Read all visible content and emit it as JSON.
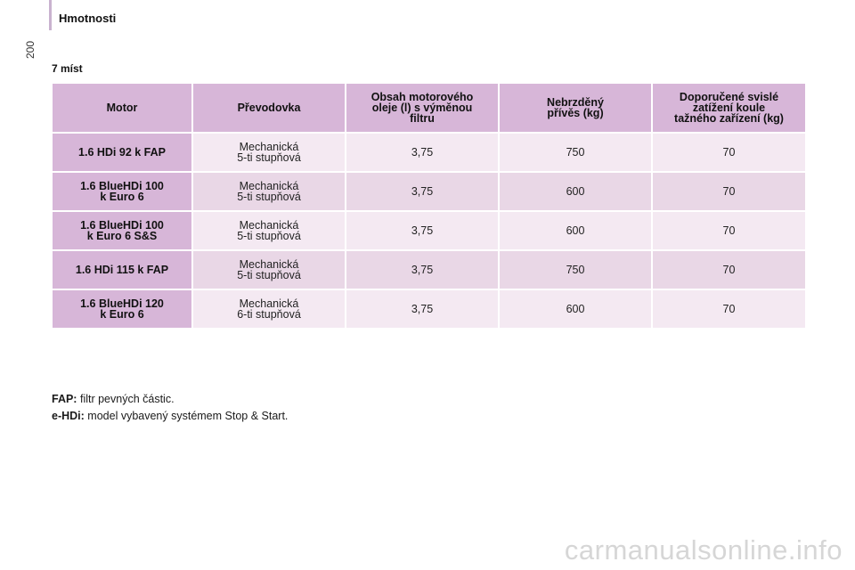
{
  "header": {
    "title": "Hmotnosti",
    "page_number": "200"
  },
  "section_title": "7 míst",
  "table": {
    "headers": [
      [
        "Motor"
      ],
      [
        "Převodovka"
      ],
      [
        "Obsah motorového",
        "oleje (l) s výměnou",
        "filtru"
      ],
      [
        "Nebrzděný",
        "přívěs (kg)"
      ],
      [
        "Doporučené svislé",
        "zatížení koule",
        "tažného zařízení (kg)"
      ]
    ],
    "rows": [
      {
        "motor": [
          "1.6 HDi 92 k FAP"
        ],
        "gearbox": [
          "Mechanická",
          "5-ti stupňová"
        ],
        "oil": "3,75",
        "trailer": "750",
        "load": "70"
      },
      {
        "motor": [
          "1.6 BlueHDi 100",
          "k Euro 6"
        ],
        "gearbox": [
          "Mechanická",
          "5-ti stupňová"
        ],
        "oil": "3,75",
        "trailer": "600",
        "load": "70"
      },
      {
        "motor": [
          "1.6 BlueHDi 100",
          "k Euro 6 S&S"
        ],
        "gearbox": [
          "Mechanická",
          "5-ti stupňová"
        ],
        "oil": "3,75",
        "trailer": "600",
        "load": "70"
      },
      {
        "motor": [
          "1.6 HDi 115 k FAP"
        ],
        "gearbox": [
          "Mechanická",
          "5-ti stupňová"
        ],
        "oil": "3,75",
        "trailer": "750",
        "load": "70"
      },
      {
        "motor": [
          "1.6 BlueHDi 120",
          "k Euro 6"
        ],
        "gearbox": [
          "Mechanická",
          "6-ti stupňová"
        ],
        "oil": "3,75",
        "trailer": "600",
        "load": "70"
      }
    ]
  },
  "notes": [
    {
      "term": "FAP:",
      "text": "filtr pevných částic."
    },
    {
      "term": "e-HDi:",
      "text": "model vybavený systémem Stop & Start."
    }
  ],
  "watermark": "carmanualsonline.info",
  "colors": {
    "header_bg": "#d7b6d8",
    "row_light": "#f4e9f2",
    "row_dark": "#e9d7e6",
    "rule": "#c9b2cf"
  }
}
